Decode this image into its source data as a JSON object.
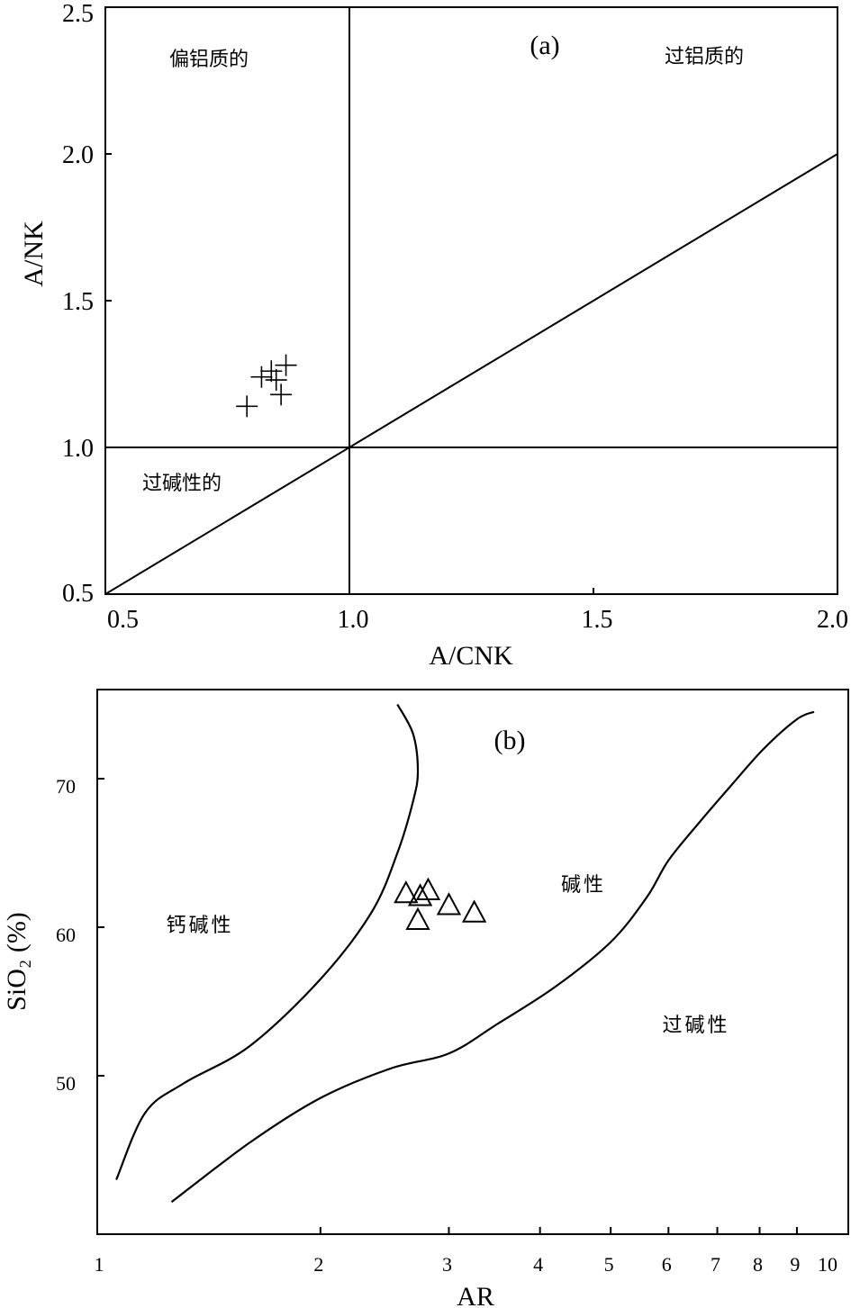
{
  "chart_data": [
    {
      "type": "scatter",
      "panel_label": "(a)",
      "xlabel": "A/CNK",
      "ylabel": "A/NK",
      "xlim": [
        0.5,
        2.0
      ],
      "ylim": [
        0.5,
        2.5
      ],
      "x_ticks": [
        "0.5",
        "1.0",
        "1.5",
        "2.0"
      ],
      "y_ticks": [
        "0.5",
        "1.0",
        "1.5",
        "2.0",
        "2.5"
      ],
      "grid": false,
      "region_labels": [
        "偏铝质的",
        "过铝质的",
        "过碱性的"
      ],
      "boundaries": [
        {
          "name": "A/CNK = 1",
          "x": [
            1.0,
            1.0
          ],
          "y": [
            0.5,
            2.5
          ]
        },
        {
          "name": "A/NK = 1",
          "x": [
            0.5,
            2.0
          ],
          "y": [
            1.0,
            1.0
          ]
        },
        {
          "name": "A/NK = A/CNK",
          "x": [
            0.5,
            2.0
          ],
          "y": [
            0.5,
            2.0
          ]
        }
      ],
      "series": [
        {
          "marker": "plus",
          "points": [
            {
              "x": 0.79,
              "y": 1.14
            },
            {
              "x": 0.82,
              "y": 1.24
            },
            {
              "x": 0.84,
              "y": 1.26
            },
            {
              "x": 0.85,
              "y": 1.23
            },
            {
              "x": 0.86,
              "y": 1.18
            },
            {
              "x": 0.87,
              "y": 1.28
            }
          ]
        }
      ]
    },
    {
      "type": "scatter",
      "panel_label": "(b)",
      "xlabel": "AR",
      "ylabel": "SiO₂ (%)",
      "xscale": "log",
      "xlim": [
        1,
        10
      ],
      "ylim": [
        40,
        76
      ],
      "x_ticks": [
        "1",
        "2",
        "3",
        "4",
        "5",
        "6",
        "7",
        "8",
        "9",
        "10"
      ],
      "y_ticks": [
        "50",
        "60",
        "70"
      ],
      "grid": false,
      "region_labels": [
        "钙碱性",
        "碱性",
        "过碱性"
      ],
      "boundaries": [
        {
          "name": "calc-alkaline / alkaline",
          "x": [
            1.05,
            1.15,
            1.3,
            1.6,
            2.0,
            2.35,
            2.55,
            2.68,
            2.72,
            2.68,
            2.55
          ],
          "y": [
            43,
            47.5,
            49.5,
            52,
            56.5,
            61,
            65,
            68.5,
            70.5,
            73,
            75
          ]
        },
        {
          "name": "alkaline / peralkaline",
          "x": [
            1.25,
            1.6,
            2.0,
            2.5,
            3.0,
            3.5,
            4.2,
            5.0,
            5.6,
            6.0,
            6.6,
            7.3,
            8.1,
            9.0,
            9.5
          ],
          "y": [
            41.5,
            45.5,
            48.5,
            50.5,
            51.5,
            53.5,
            56,
            59,
            62,
            64.5,
            67,
            69.5,
            72,
            74,
            74.5
          ]
        }
      ],
      "series": [
        {
          "marker": "triangle",
          "points": [
            {
              "x": 2.62,
              "y": 62.3
            },
            {
              "x": 2.72,
              "y": 60.5
            },
            {
              "x": 2.74,
              "y": 62.1
            },
            {
              "x": 2.81,
              "y": 62.5
            },
            {
              "x": 3.0,
              "y": 61.5
            },
            {
              "x": 3.25,
              "y": 61.0
            }
          ]
        }
      ]
    }
  ]
}
